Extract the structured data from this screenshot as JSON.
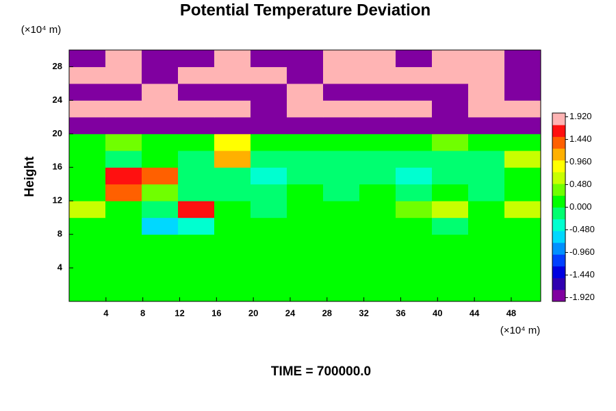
{
  "chart_data": {
    "type": "heatmap",
    "title": "Potential Temperature Deviation",
    "ylabel": "Height",
    "yunit": "(×10⁴ m)",
    "xunit": "(×10⁴ m)",
    "footer": "TIME = 700000.0",
    "xlim": [
      0,
      51.2
    ],
    "ylim": [
      0,
      30
    ],
    "xticks": [
      4,
      8,
      12,
      16,
      20,
      24,
      28,
      32,
      36,
      40,
      44,
      48
    ],
    "yticks": [
      4,
      8,
      12,
      16,
      20,
      24,
      28
    ],
    "z": [
      [
        0.1,
        0.1,
        0.1,
        0.1,
        0.1,
        0.1,
        0.1,
        0.1,
        0.1,
        0.1,
        0.1,
        0.1,
        0.1
      ],
      [
        0.1,
        0.1,
        0.1,
        0.1,
        0.1,
        0.1,
        0.1,
        0.1,
        0.1,
        0.1,
        0.1,
        0.1,
        0.1
      ],
      [
        0.1,
        0.1,
        0.1,
        0.1,
        0.1,
        0.1,
        0.1,
        0.1,
        0.1,
        0.1,
        0.1,
        0.1,
        0.1
      ],
      [
        0.1,
        0.1,
        0.1,
        0.1,
        0.1,
        0.1,
        0.1,
        0.1,
        0.1,
        0.1,
        0.1,
        0.1,
        0.1
      ],
      [
        0.1,
        0.1,
        -0.6,
        -0.3,
        0.1,
        0.1,
        0.1,
        0.1,
        0.1,
        0.1,
        -0.1,
        0.1,
        0.1
      ],
      [
        0.5,
        0.1,
        -0.2,
        1.6,
        0.1,
        -0.1,
        0.1,
        0.1,
        0.1,
        0.4,
        0.6,
        0.2,
        0.6
      ],
      [
        0.1,
        1.3,
        0.3,
        -0.1,
        -0.2,
        -0.1,
        0.1,
        -0.1,
        0.1,
        -0.2,
        0.1,
        -0.1,
        0.1
      ],
      [
        0.1,
        1.7,
        1.4,
        -0.2,
        -0.1,
        -0.3,
        -0.1,
        -0.2,
        -0.1,
        -0.3,
        -0.1,
        -0.2,
        0.1
      ],
      [
        0.1,
        -0.1,
        0.1,
        -0.2,
        1.0,
        -0.1,
        -0.2,
        -0.1,
        -0.2,
        -0.1,
        -0.2,
        -0.1,
        0.6
      ],
      [
        0.2,
        0.4,
        0.1,
        0.1,
        0.8,
        0.1,
        0.1,
        0.1,
        0.1,
        0.1,
        0.4,
        0.1,
        0.2
      ],
      [
        -1.9,
        -1.9,
        -1.9,
        -1.9,
        -1.9,
        -1.9,
        -1.9,
        -1.9,
        -1.9,
        -1.9,
        -1.9,
        -1.9,
        -1.9
      ],
      [
        1.9,
        1.9,
        1.9,
        1.9,
        1.9,
        -1.9,
        1.9,
        1.9,
        1.9,
        1.9,
        -1.9,
        1.9,
        1.9
      ],
      [
        -1.9,
        -1.9,
        1.9,
        -1.9,
        -1.9,
        -1.9,
        1.9,
        -1.9,
        -1.9,
        -1.9,
        -1.9,
        1.9,
        -1.9
      ],
      [
        1.9,
        1.9,
        -1.9,
        1.9,
        1.9,
        1.9,
        -1.9,
        1.9,
        1.9,
        1.9,
        1.9,
        1.9,
        -1.9
      ],
      [
        -1.9,
        1.9,
        -1.9,
        -1.9,
        1.9,
        -1.9,
        -1.9,
        1.9,
        1.9,
        -1.9,
        1.9,
        1.9,
        -1.9
      ]
    ],
    "colorbar": {
      "levels": [
        -2,
        -1.75,
        -1.5,
        -1.25,
        -1,
        -0.75,
        -0.5,
        -0.25,
        0,
        0.25,
        0.5,
        0.75,
        1,
        1.25,
        1.5,
        1.75,
        2
      ],
      "colors": [
        "#8000a0",
        "#3000b0",
        "#0000e0",
        "#0040ff",
        "#0090ff",
        "#00d8ff",
        "#00ffd0",
        "#00ff70",
        "#00ff00",
        "#70ff00",
        "#c8ff00",
        "#ffff00",
        "#ffb000",
        "#ff6000",
        "#ff1010",
        "#ffb4b4"
      ],
      "ticks": [
        {
          "value": 1.92,
          "label": "1.920"
        },
        {
          "value": 1.44,
          "label": "1.440"
        },
        {
          "value": 0.96,
          "label": "0.960"
        },
        {
          "value": 0.48,
          "label": "0.480"
        },
        {
          "value": 0,
          "label": "0.000"
        },
        {
          "value": -0.48,
          "label": "-0.480"
        },
        {
          "value": -0.96,
          "label": "-0.960"
        },
        {
          "value": -1.44,
          "label": "-1.440"
        },
        {
          "value": -1.92,
          "label": "-1.920"
        }
      ]
    }
  }
}
